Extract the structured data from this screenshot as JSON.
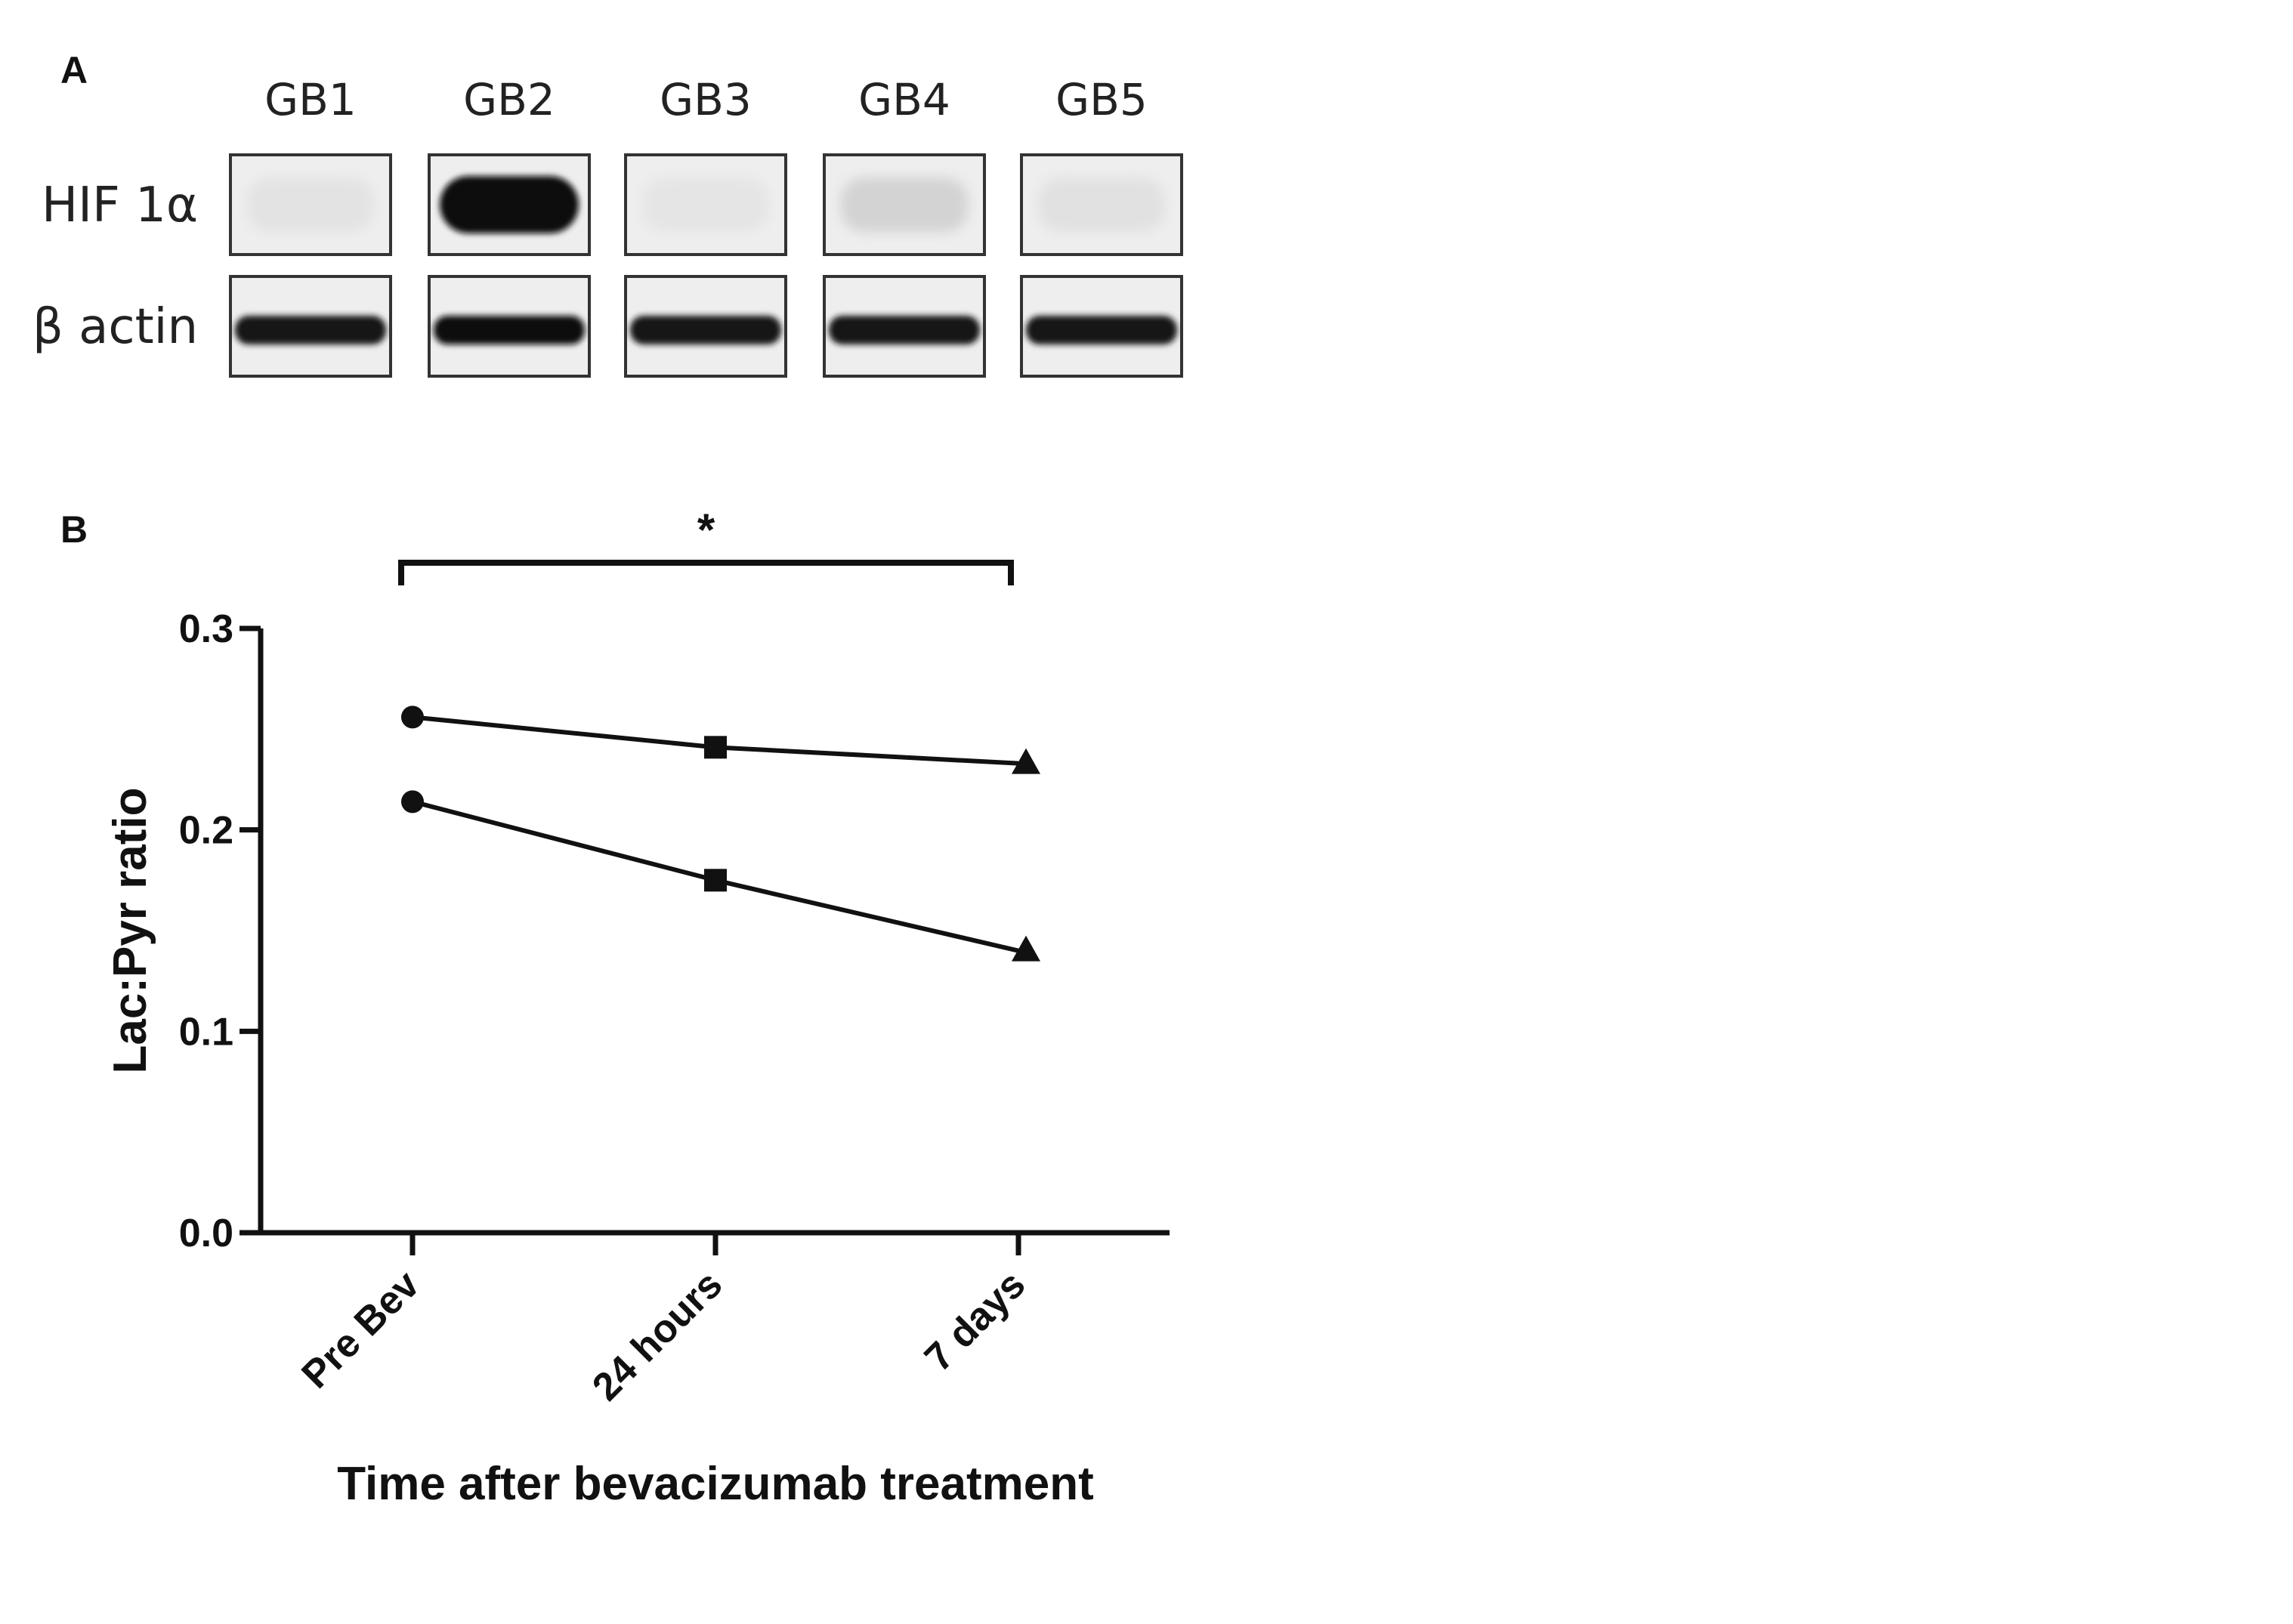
{
  "panel_a": {
    "letter": "A",
    "lanes": [
      "GB1",
      "GB2",
      "GB3",
      "GB4",
      "GB5"
    ],
    "rows": [
      {
        "label": "HIF 1α",
        "band_intensity": [
          0.04,
          1.0,
          0.03,
          0.12,
          0.05
        ]
      },
      {
        "label": "β actin",
        "band_intensity": [
          0.9,
          0.95,
          0.92,
          0.93,
          0.94
        ]
      }
    ]
  },
  "panel_b": {
    "letter": "B",
    "significance": "*"
  },
  "chart_data": {
    "type": "line",
    "categories": [
      "Pre Bev",
      "24 hours",
      "7 days"
    ],
    "series": [
      {
        "values": [
          0.256,
          0.241,
          0.233
        ],
        "markers": [
          "circle",
          "square",
          "triangle"
        ]
      },
      {
        "values": [
          0.214,
          0.175,
          0.14
        ],
        "markers": [
          "circle",
          "square",
          "triangle"
        ]
      }
    ],
    "xlabel": "Time after bevacizumab treatment",
    "ylabel": "Lac:Pyr ratio",
    "ylim": [
      0.0,
      0.3
    ],
    "yticks": [
      "0.0",
      "0.1",
      "0.2",
      "0.3"
    ],
    "grid": false,
    "legend": "none"
  }
}
